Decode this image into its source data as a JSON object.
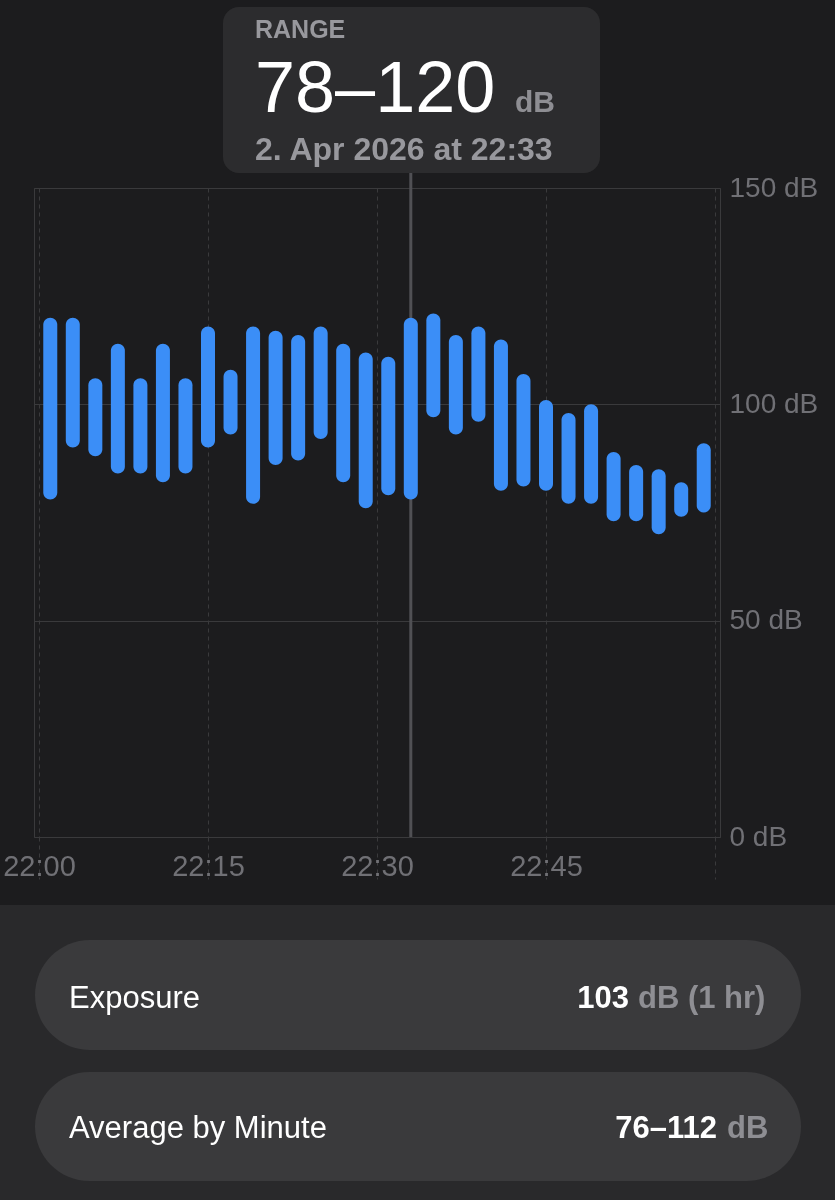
{
  "chart_data": {
    "type": "bar",
    "x": [
      "2026-04-02T22:01",
      "2026-04-02T22:03",
      "2026-04-02T22:05",
      "2026-04-02T22:07",
      "2026-04-02T22:09",
      "2026-04-02T22:11",
      "2026-04-02T22:13",
      "2026-04-02T22:15",
      "2026-04-02T22:17",
      "2026-04-02T22:19",
      "2026-04-02T22:21",
      "2026-04-02T22:23",
      "2026-04-02T22:25",
      "2026-04-02T22:27",
      "2026-04-02T22:29",
      "2026-04-02T22:31",
      "2026-04-02T22:33",
      "2026-04-02T22:35",
      "2026-04-02T22:37",
      "2026-04-02T22:39",
      "2026-04-02T22:41",
      "2026-04-02T22:43",
      "2026-04-02T22:45",
      "2026-04-02T22:47",
      "2026-04-02T22:49",
      "2026-04-02T22:51",
      "2026-04-02T22:53",
      "2026-04-02T22:55",
      "2026-04-02T22:57",
      "2026-04-02T22:59"
    ],
    "base": [
      78,
      90,
      88,
      84,
      84,
      82,
      84,
      90,
      93,
      77,
      86,
      87,
      92,
      82,
      76,
      79,
      78,
      97,
      93,
      96,
      80,
      81,
      80,
      77,
      77,
      73,
      73,
      70,
      74,
      75
    ],
    "values": [
      42,
      30,
      18,
      30,
      22,
      32,
      22,
      28,
      15,
      41,
      31,
      29,
      26,
      32,
      36,
      32,
      42,
      24,
      23,
      22,
      35,
      26,
      21,
      21,
      23,
      16,
      13,
      15,
      8,
      16
    ],
    "color": "#3b8ef7",
    "xlim": [
      "2026-04-02T22:00",
      "2026-04-02T23:00"
    ],
    "xticks": [
      {
        "value": "2026-04-02T22:00",
        "label": "22:00"
      },
      {
        "value": "2026-04-02T22:15",
        "label": "22:15"
      },
      {
        "value": "2026-04-02T22:30",
        "label": "22:30"
      },
      {
        "value": "2026-04-02T22:45",
        "label": "22:45"
      },
      {
        "value": "2026-04-02T23:00",
        "label": null
      }
    ],
    "ylim": [
      0,
      150
    ],
    "yticks": [
      {
        "value": 0,
        "label": "0 dB"
      },
      {
        "value": 50,
        "label": "50 dB"
      },
      {
        "value": 100,
        "label": "100 dB"
      },
      {
        "value": 150,
        "label": "150 dB"
      }
    ],
    "grid": true,
    "ref_lines": [
      {
        "axis": "x",
        "value": "2026-04-02T22:33",
        "color": "#505054"
      }
    ],
    "annotations": [
      "RANGE",
      "78–120",
      "dB",
      "2. Apr 2026 at 22:33",
      "Exposure",
      "103",
      "dB (1 hr)",
      "Average by Minute",
      "76–112",
      "dB"
    ]
  }
}
